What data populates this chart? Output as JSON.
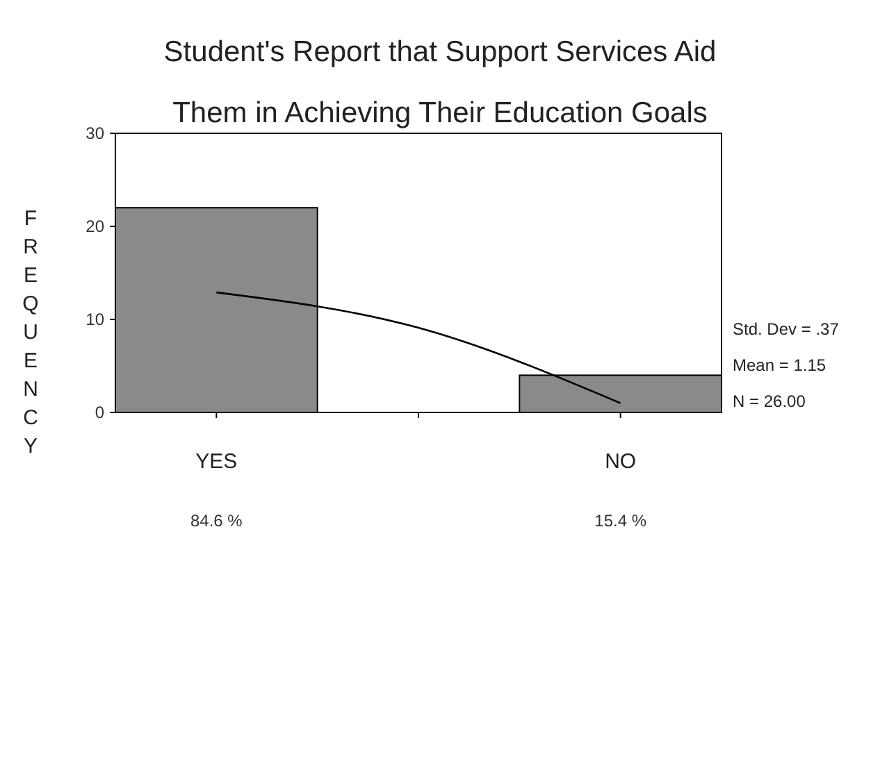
{
  "chart_data": {
    "type": "bar",
    "title": "Student's Report that Support Services Aid Them in Achieving Their Education Goals",
    "ylabel": "FREQUENCY",
    "categories": [
      "YES",
      null,
      "NO"
    ],
    "values": [
      22,
      0,
      4
    ],
    "color": "#8a8a8a",
    "ylim": [
      0,
      30
    ],
    "yticks": [
      0,
      10,
      20,
      30
    ],
    "grid": false,
    "series": [
      {
        "type": "line",
        "color": "#000000",
        "values": [
          12.9,
          9.1,
          1.0
        ]
      }
    ],
    "annotations": [
      "84.6 %",
      "15.4 %",
      "Std. Dev = .37",
      "Mean = 1.15",
      "N = 26.00"
    ]
  }
}
